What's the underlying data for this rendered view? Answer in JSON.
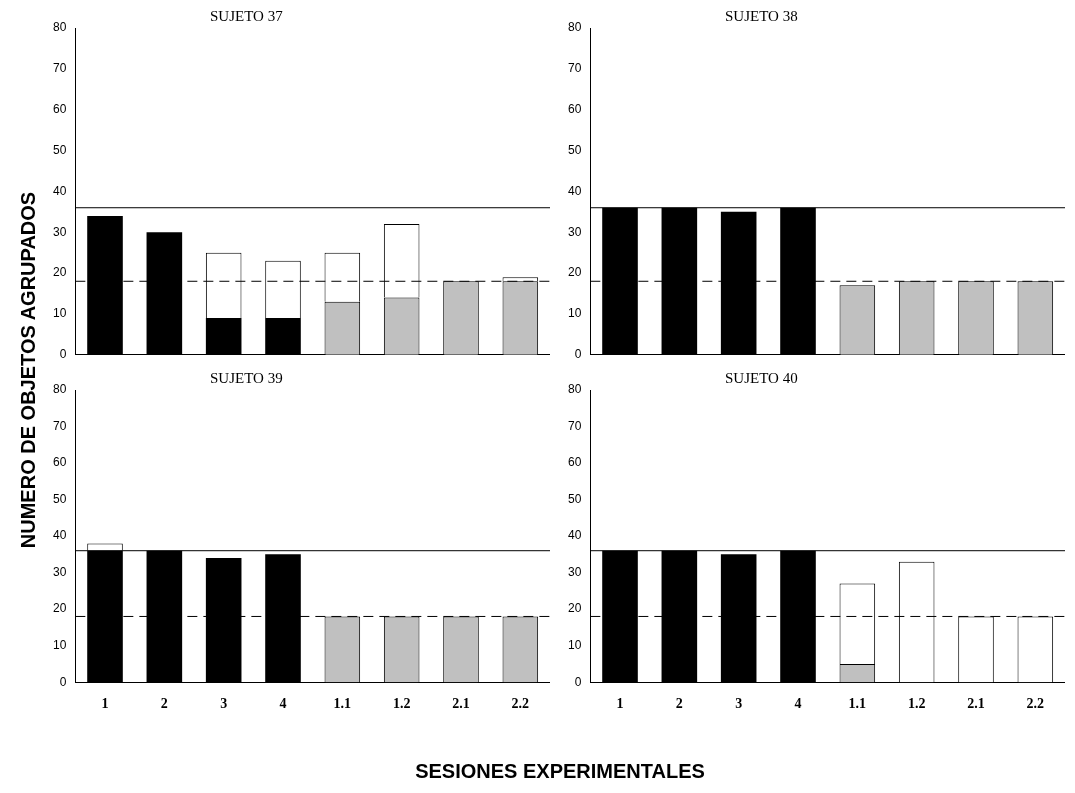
{
  "chart_data": [
    {
      "type": "bar",
      "title": "SUJETO 37",
      "ylabel": "NUMERO DE OBJETOS AGRUPADOS",
      "stacked": true,
      "tick_labels": "y",
      "categories": [
        "1",
        "2",
        "3",
        "4",
        "1.1",
        "1.2",
        "2.1",
        "2.2"
      ],
      "series": [
        {
          "color": "#000000",
          "values": [
            34,
            30,
            9,
            9,
            null,
            null,
            null,
            null
          ]
        },
        {
          "color": "#c0c0c0",
          "values": [
            null,
            null,
            null,
            null,
            13,
            14,
            18,
            18
          ]
        },
        {
          "color": "#ffffff",
          "values": [
            null,
            null,
            16,
            14,
            12,
            18,
            null,
            1
          ]
        }
      ],
      "ylim": [
        0,
        80
      ],
      "yticks": [
        0,
        10,
        20,
        30,
        40,
        50,
        60,
        70,
        80
      ],
      "ref_lines": [
        {
          "axis": "y",
          "value": 36,
          "line_style": "solid"
        },
        {
          "axis": "y",
          "value": 18,
          "line_style": "dashed"
        }
      ]
    },
    {
      "type": "bar",
      "title": "SUJETO 38",
      "stacked": true,
      "tick_labels": "y",
      "categories": [
        "1",
        "2",
        "3",
        "4",
        "1.1",
        "1.2",
        "2.1",
        "2.2"
      ],
      "series": [
        {
          "color": "#000000",
          "values": [
            36,
            36,
            35,
            36,
            null,
            null,
            null,
            null
          ]
        },
        {
          "color": "#c0c0c0",
          "values": [
            null,
            null,
            null,
            null,
            17,
            18,
            18,
            18
          ]
        }
      ],
      "ylim": [
        0,
        80
      ],
      "yticks": [
        0,
        10,
        20,
        30,
        40,
        50,
        60,
        70,
        80
      ],
      "ref_lines": [
        {
          "axis": "y",
          "value": 36,
          "line_style": "solid"
        },
        {
          "axis": "y",
          "value": 18,
          "line_style": "dashed"
        }
      ]
    },
    {
      "type": "bar",
      "title": "SUJETO 39",
      "xlabel": "SESIONES EXPERIMENTALES",
      "stacked": true,
      "categories": [
        "1",
        "2",
        "3",
        "4",
        "1.1",
        "1.2",
        "2.1",
        "2.2"
      ],
      "series": [
        {
          "color": "#000000",
          "values": [
            36,
            36,
            34,
            35,
            null,
            null,
            null,
            null
          ]
        },
        {
          "color": "#c0c0c0",
          "values": [
            null,
            null,
            null,
            null,
            18,
            18,
            18,
            18
          ]
        },
        {
          "color": "#ffffff",
          "values": [
            2,
            null,
            null,
            null,
            null,
            null,
            null,
            null
          ]
        }
      ],
      "ylim": [
        0,
        80
      ],
      "yticks": [
        0,
        10,
        20,
        30,
        40,
        50,
        60,
        70,
        80
      ],
      "ref_lines": [
        {
          "axis": "y",
          "value": 36,
          "line_style": "solid"
        },
        {
          "axis": "y",
          "value": 18,
          "line_style": "dashed"
        }
      ]
    },
    {
      "type": "bar",
      "title": "SUJETO 40",
      "stacked": true,
      "categories": [
        "1",
        "2",
        "3",
        "4",
        "1.1",
        "1.2",
        "2.1",
        "2.2"
      ],
      "series": [
        {
          "color": "#000000",
          "values": [
            36,
            36,
            35,
            36,
            null,
            null,
            null,
            null
          ]
        },
        {
          "color": "#c0c0c0",
          "values": [
            null,
            null,
            null,
            null,
            5,
            null,
            null,
            null
          ]
        },
        {
          "color": "#ffffff",
          "values": [
            null,
            null,
            null,
            null,
            22,
            33,
            18,
            18
          ]
        }
      ],
      "ylim": [
        0,
        80
      ],
      "yticks": [
        0,
        10,
        20,
        30,
        40,
        50,
        60,
        70,
        80
      ],
      "ref_lines": [
        {
          "axis": "y",
          "value": 36,
          "line_style": "solid"
        },
        {
          "axis": "y",
          "value": 18,
          "line_style": "dashed"
        }
      ]
    }
  ]
}
